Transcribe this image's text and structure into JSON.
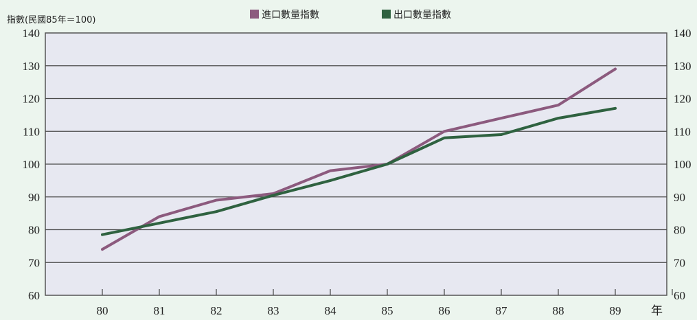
{
  "chart_data": {
    "type": "line",
    "ylabel": "指數(民國85年＝100)",
    "xlabel": "年",
    "x": [
      "80",
      "81",
      "82",
      "83",
      "84",
      "85",
      "86",
      "87",
      "88",
      "89"
    ],
    "ylim": [
      60,
      140
    ],
    "yticks": [
      60,
      70,
      80,
      90,
      100,
      110,
      120,
      130,
      140
    ],
    "grid": true,
    "legend": "top",
    "series": [
      {
        "name": "進口數量指數",
        "color": "#8c5a7e",
        "values": [
          74,
          84,
          89,
          91,
          98,
          100,
          110,
          114,
          118,
          129
        ]
      },
      {
        "name": "出口數量指數",
        "color": "#2f6240",
        "values": [
          78.5,
          82,
          85.5,
          90.5,
          95,
          100,
          108,
          109,
          114,
          117
        ]
      }
    ]
  }
}
